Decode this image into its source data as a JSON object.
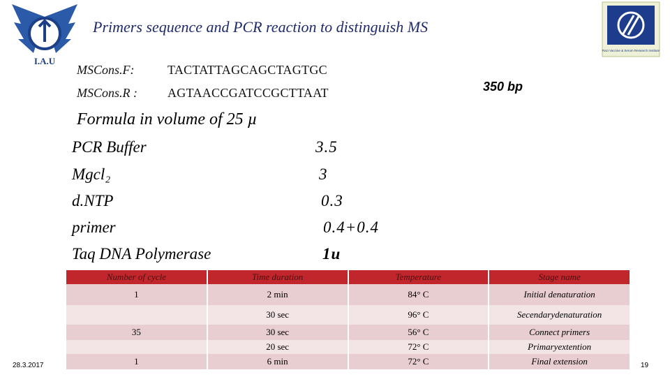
{
  "header": {
    "title": "Primers sequence and PCR reaction to distinguish MS",
    "left_logo": "I.A.U",
    "right_logo": "Razi Vaccine & Serum Research Institute"
  },
  "primers": [
    {
      "name": "MSCons.F:",
      "sequence": "TACTATTAGCAGCTAGTGC"
    },
    {
      "name": "MSCons.R :",
      "sequence": "AGTAACCGATCCGCTTAAT"
    }
  ],
  "product_size": "350 bp",
  "formula": {
    "heading": "Formula in volume of 25 µ",
    "items": [
      {
        "reagent": "PCR Buffer",
        "amount": "3.5"
      },
      {
        "reagent": "Mgcl₂",
        "amount": "3"
      },
      {
        "reagent": "d.NTP",
        "amount": "0.3"
      },
      {
        "reagent": "primer",
        "amount": "0.4+0.4"
      },
      {
        "reagent": "Taq DNA Polymerase",
        "amount": "1u"
      }
    ]
  },
  "table": {
    "header": [
      "Number of cycle",
      "Time duration",
      "Temperature",
      "Stage name"
    ],
    "rows": [
      [
        "1",
        "2 min",
        "84° C",
        "Initial denaturation"
      ],
      [
        null,
        "30 sec",
        "96° C",
        "Secendarydenaturation"
      ],
      [
        "35",
        "30  sec",
        "56° C",
        "Connect primers"
      ],
      [
        null,
        "20 sec",
        "72° C",
        "Primaryextention"
      ],
      [
        "1",
        "6 min",
        "72° C",
        "Final extension"
      ]
    ]
  },
  "footer": {
    "date": "28.3.2017",
    "page": "19"
  }
}
